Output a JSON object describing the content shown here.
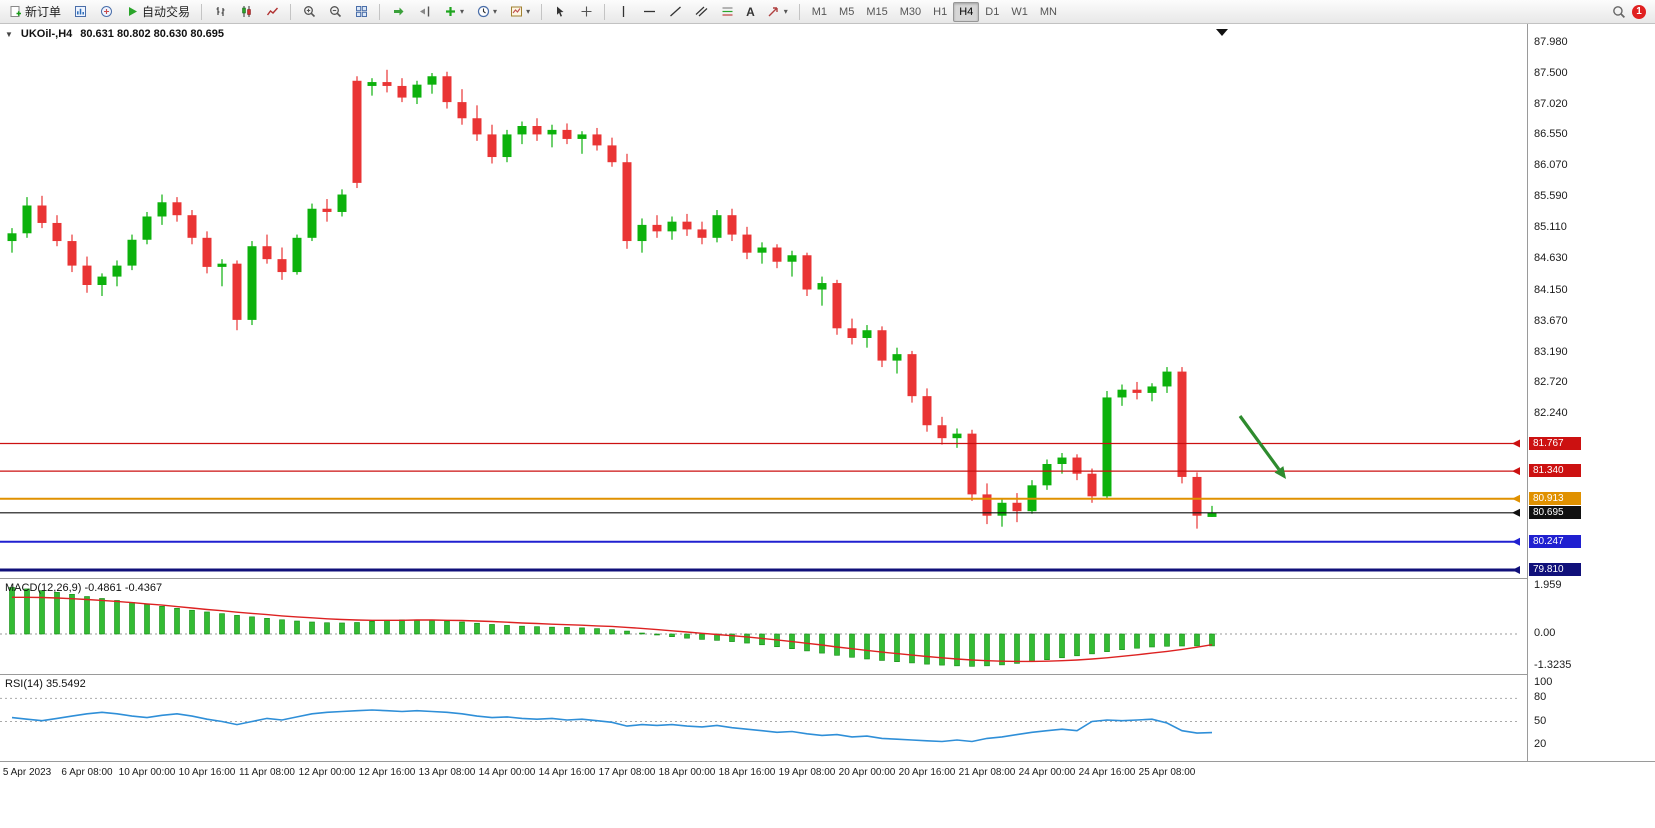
{
  "toolbar": {
    "new_order": "新订单",
    "auto_trading": "自动交易",
    "timeframes": [
      "M1",
      "M5",
      "M15",
      "M30",
      "H1",
      "H4",
      "D1",
      "W1",
      "MN"
    ],
    "active_timeframe": "H4",
    "notification_badge": "1"
  },
  "chart": {
    "header_symbol": "UKOil-,H4",
    "header_ohlc": "80.631 80.802 80.630 80.695",
    "collapse_marker": "▼"
  },
  "colors": {
    "up": "#0cb10c",
    "down": "#e93434",
    "macd_histogram": "#33bb33",
    "macd_histogram_border": "#128a12",
    "macd_signal": "#dd2222",
    "rsi_line": "#2f8fd8",
    "annotation": "#2e8b2e"
  },
  "chart_data": {
    "type": "candlestick",
    "symbol": "UKOil-",
    "timeframe": "H4",
    "ohlc": {
      "open": 80.631,
      "high": 80.802,
      "low": 80.63,
      "close": 80.695
    },
    "y_axis": {
      "ticks": [
        "87.980",
        "87.500",
        "87.020",
        "86.550",
        "86.070",
        "85.590",
        "85.110",
        "84.630",
        "84.150",
        "83.670",
        "83.190",
        "82.720",
        "82.240"
      ],
      "max": 87.98,
      "min": 79.69
    },
    "x_labels": [
      "5 Apr 2023",
      "6 Apr 08:00",
      "10 Apr 00:00",
      "10 Apr 16:00",
      "11 Apr 08:00",
      "12 Apr 00:00",
      "12 Apr 16:00",
      "13 Apr 08:00",
      "14 Apr 00:00",
      "14 Apr 16:00",
      "17 Apr 08:00",
      "18 Apr 00:00",
      "18 Apr 16:00",
      "19 Apr 08:00",
      "20 Apr 00:00",
      "20 Apr 16:00",
      "21 Apr 08:00",
      "24 Apr 00:00",
      "24 Apr 16:00",
      "25 Apr 08:00"
    ],
    "horizontal_levels": [
      {
        "value": 81.767,
        "label": "81.767",
        "color": "#cc1111",
        "thickness": 1.2
      },
      {
        "value": 81.34,
        "label": "81.340",
        "color": "#cc1111",
        "thickness": 1.2
      },
      {
        "value": 80.913,
        "label": "80.913",
        "color": "#e09100",
        "thickness": 2
      },
      {
        "value": 80.695,
        "label": "80.695",
        "color": "#111111",
        "thickness": 1.2
      },
      {
        "value": 80.247,
        "label": "80.247",
        "color": "#2020d0",
        "thickness": 2
      },
      {
        "value": 79.81,
        "label": "79.810",
        "color": "#10107a",
        "thickness": 3
      }
    ],
    "annotation_arrow": {
      "from": [
        1240,
        416
      ],
      "to": [
        1286,
        479
      ]
    },
    "candles": [
      [
        84.9,
        85.1,
        84.72,
        85.02
      ],
      [
        85.02,
        85.58,
        84.95,
        85.45
      ],
      [
        85.45,
        85.6,
        85.1,
        85.18
      ],
      [
        85.18,
        85.3,
        84.82,
        84.9
      ],
      [
        84.9,
        85.0,
        84.42,
        84.52
      ],
      [
        84.52,
        84.66,
        84.1,
        84.22
      ],
      [
        84.22,
        84.4,
        84.05,
        84.35
      ],
      [
        84.35,
        84.6,
        84.2,
        84.52
      ],
      [
        84.52,
        85.0,
        84.45,
        84.92
      ],
      [
        84.92,
        85.35,
        84.85,
        85.28
      ],
      [
        85.28,
        85.62,
        85.15,
        85.5
      ],
      [
        85.5,
        85.58,
        85.2,
        85.3
      ],
      [
        85.3,
        85.38,
        84.85,
        84.95
      ],
      [
        84.95,
        85.05,
        84.4,
        84.5
      ],
      [
        84.5,
        84.62,
        84.2,
        84.55
      ],
      [
        84.55,
        84.6,
        83.52,
        83.68
      ],
      [
        83.68,
        84.9,
        83.6,
        84.82
      ],
      [
        84.82,
        85.0,
        84.55,
        84.62
      ],
      [
        84.62,
        84.8,
        84.3,
        84.42
      ],
      [
        84.42,
        85.0,
        84.38,
        84.95
      ],
      [
        84.95,
        85.48,
        84.9,
        85.4
      ],
      [
        85.4,
        85.55,
        85.2,
        85.35
      ],
      [
        85.35,
        85.7,
        85.28,
        85.62
      ],
      [
        87.38,
        87.45,
        85.72,
        85.8
      ],
      [
        87.3,
        87.42,
        87.15,
        87.36
      ],
      [
        87.36,
        87.55,
        87.2,
        87.3
      ],
      [
        87.3,
        87.42,
        87.05,
        87.12
      ],
      [
        87.12,
        87.38,
        87.02,
        87.32
      ],
      [
        87.32,
        87.5,
        87.18,
        87.45
      ],
      [
        87.45,
        87.52,
        86.95,
        87.05
      ],
      [
        87.05,
        87.25,
        86.7,
        86.8
      ],
      [
        86.8,
        87.0,
        86.45,
        86.55
      ],
      [
        86.55,
        86.7,
        86.1,
        86.2
      ],
      [
        86.2,
        86.62,
        86.12,
        86.55
      ],
      [
        86.55,
        86.75,
        86.4,
        86.68
      ],
      [
        86.68,
        86.8,
        86.45,
        86.55
      ],
      [
        86.55,
        86.7,
        86.35,
        86.62
      ],
      [
        86.62,
        86.72,
        86.4,
        86.48
      ],
      [
        86.48,
        86.6,
        86.25,
        86.55
      ],
      [
        86.55,
        86.65,
        86.3,
        86.38
      ],
      [
        86.38,
        86.5,
        86.05,
        86.12
      ],
      [
        86.12,
        86.25,
        84.78,
        84.9
      ],
      [
        84.9,
        85.25,
        84.72,
        85.15
      ],
      [
        85.15,
        85.3,
        84.95,
        85.05
      ],
      [
        85.05,
        85.28,
        84.92,
        85.2
      ],
      [
        85.2,
        85.32,
        84.98,
        85.08
      ],
      [
        85.08,
        85.2,
        84.85,
        84.95
      ],
      [
        84.95,
        85.38,
        84.88,
        85.3
      ],
      [
        85.3,
        85.4,
        84.9,
        85.0
      ],
      [
        85.0,
        85.12,
        84.62,
        84.72
      ],
      [
        84.72,
        84.88,
        84.55,
        84.8
      ],
      [
        84.8,
        84.85,
        84.48,
        84.58
      ],
      [
        84.58,
        84.75,
        84.35,
        84.68
      ],
      [
        84.68,
        84.72,
        84.05,
        84.15
      ],
      [
        84.15,
        84.35,
        83.9,
        84.25
      ],
      [
        84.25,
        84.3,
        83.45,
        83.55
      ],
      [
        83.55,
        83.7,
        83.3,
        83.4
      ],
      [
        83.4,
        83.6,
        83.25,
        83.52
      ],
      [
        83.52,
        83.58,
        82.95,
        83.05
      ],
      [
        83.05,
        83.25,
        82.85,
        83.15
      ],
      [
        83.15,
        83.2,
        82.4,
        82.5
      ],
      [
        82.5,
        82.62,
        81.95,
        82.05
      ],
      [
        82.05,
        82.18,
        81.75,
        81.85
      ],
      [
        81.85,
        82.0,
        81.7,
        81.92
      ],
      [
        81.92,
        81.98,
        80.88,
        80.98
      ],
      [
        80.98,
        81.15,
        80.52,
        80.65
      ],
      [
        80.65,
        80.92,
        80.48,
        80.85
      ],
      [
        80.85,
        81.0,
        80.55,
        80.72
      ],
      [
        80.72,
        81.2,
        80.68,
        81.12
      ],
      [
        81.12,
        81.52,
        81.05,
        81.45
      ],
      [
        81.45,
        81.62,
        81.3,
        81.55
      ],
      [
        81.55,
        81.6,
        81.2,
        81.3
      ],
      [
        81.3,
        81.38,
        80.85,
        80.95
      ],
      [
        80.95,
        82.58,
        80.9,
        82.48
      ],
      [
        82.48,
        82.68,
        82.35,
        82.6
      ],
      [
        82.6,
        82.72,
        82.45,
        82.55
      ],
      [
        82.55,
        82.7,
        82.42,
        82.65
      ],
      [
        82.65,
        82.95,
        82.55,
        82.88
      ],
      [
        82.88,
        82.95,
        81.15,
        81.25
      ],
      [
        81.25,
        81.32,
        80.45,
        80.65
      ],
      [
        80.631,
        80.802,
        80.63,
        80.695
      ]
    ],
    "indicators": {
      "macd": {
        "label": "MACD(12,26,9) -0.4861 -0.4367",
        "main_value": -0.4861,
        "signal_value": -0.4367,
        "scale": [
          "1.959",
          "0.00",
          "-1.3235"
        ],
        "histogram": [
          1.9,
          1.84,
          1.77,
          1.7,
          1.62,
          1.53,
          1.45,
          1.37,
          1.29,
          1.21,
          1.13,
          1.05,
          0.97,
          0.9,
          0.83,
          0.76,
          0.7,
          0.64,
          0.58,
          0.53,
          0.49,
          0.46,
          0.45,
          0.47,
          0.52,
          0.56,
          0.58,
          0.58,
          0.56,
          0.53,
          0.49,
          0.44,
          0.39,
          0.35,
          0.32,
          0.3,
          0.28,
          0.27,
          0.25,
          0.22,
          0.18,
          0.12,
          0.04,
          -0.04,
          -0.11,
          -0.17,
          -0.22,
          -0.26,
          -0.31,
          -0.37,
          -0.44,
          -0.52,
          -0.6,
          -0.69,
          -0.78,
          -0.87,
          -0.95,
          -1.02,
          -1.08,
          -1.13,
          -1.18,
          -1.23,
          -1.27,
          -1.3,
          -1.32,
          -1.3,
          -1.26,
          -1.2,
          -1.13,
          -1.05,
          -0.97,
          -0.89,
          -0.81,
          -0.72,
          -0.64,
          -0.58,
          -0.53,
          -0.5,
          -0.49,
          -0.487,
          -0.4861
        ],
        "signal": [
          1.5,
          1.5,
          1.49,
          1.47,
          1.44,
          1.41,
          1.37,
          1.33,
          1.28,
          1.23,
          1.18,
          1.12,
          1.06,
          1.0,
          0.95,
          0.89,
          0.84,
          0.79,
          0.74,
          0.7,
          0.66,
          0.62,
          0.59,
          0.57,
          0.56,
          0.56,
          0.56,
          0.57,
          0.57,
          0.56,
          0.55,
          0.53,
          0.51,
          0.48,
          0.45,
          0.43,
          0.4,
          0.38,
          0.36,
          0.33,
          0.31,
          0.27,
          0.23,
          0.18,
          0.13,
          0.08,
          0.03,
          -0.02,
          -0.07,
          -0.12,
          -0.18,
          -0.24,
          -0.31,
          -0.38,
          -0.45,
          -0.53,
          -0.6,
          -0.67,
          -0.74,
          -0.8,
          -0.86,
          -0.92,
          -0.97,
          -1.02,
          -1.06,
          -1.09,
          -1.11,
          -1.12,
          -1.12,
          -1.11,
          -1.09,
          -1.06,
          -1.02,
          -0.97,
          -0.91,
          -0.85,
          -0.78,
          -0.71,
          -0.63,
          -0.54,
          -0.4367
        ]
      },
      "rsi": {
        "label": "RSI(14) 35.5492",
        "value": 35.5492,
        "scale": [
          "100",
          "80",
          "50",
          "20"
        ],
        "levels": [
          80,
          50
        ],
        "values": [
          55,
          53,
          51,
          54,
          57,
          60,
          62,
          60,
          57,
          55,
          58,
          60,
          57,
          53,
          50,
          46,
          50,
          54,
          52,
          56,
          60,
          62,
          63,
          64,
          65,
          64,
          63,
          64,
          63,
          62,
          60,
          57,
          55,
          56,
          54,
          53,
          54,
          52,
          53,
          51,
          49,
          44,
          46,
          45,
          46,
          44,
          43,
          45,
          42,
          40,
          38,
          36,
          37,
          34,
          32,
          33,
          30,
          31,
          28,
          27,
          26,
          25,
          24,
          26,
          24,
          28,
          30,
          33,
          36,
          38,
          40,
          38,
          50,
          52,
          51,
          52,
          53,
          48,
          38,
          35,
          35.55
        ]
      }
    }
  }
}
